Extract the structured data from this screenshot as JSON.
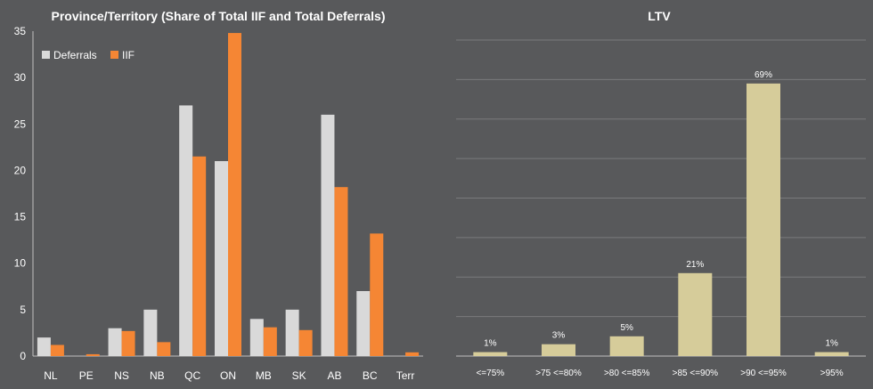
{
  "colors": {
    "background": "#58595b",
    "deferrals": "#d9d9d9",
    "iif": "#f58634",
    "ltv_bar": "#d6cc9a",
    "grid": "#7a7b7d",
    "text": "#ffffff"
  },
  "chart_data": [
    {
      "type": "bar",
      "title": "Province/Territory (Share of Total IIF and Total Deferrals)",
      "categories": [
        "NL",
        "PE",
        "NS",
        "NB",
        "QC",
        "ON",
        "MB",
        "SK",
        "AB",
        "BC",
        "Terr"
      ],
      "series": [
        {
          "name": "Deferrals",
          "color": "#d9d9d9",
          "values": [
            2,
            0,
            3,
            5,
            27,
            21,
            4,
            5,
            26,
            7,
            0
          ]
        },
        {
          "name": "IIF",
          "color": "#f58634",
          "values": [
            1.2,
            0.2,
            2.7,
            1.5,
            21.5,
            34.8,
            3.1,
            2.8,
            18.2,
            13.2,
            0.4
          ]
        }
      ],
      "ylim": [
        0,
        35
      ],
      "yticks": [
        0,
        5,
        10,
        15,
        20,
        25,
        30,
        35
      ],
      "grid": false,
      "legend": "top-left"
    },
    {
      "type": "bar",
      "title": "LTV",
      "categories": [
        "<=75%",
        ">75 <=80%",
        ">80 <=85%",
        ">85 <=90%",
        ">90 <=95%",
        ">95%"
      ],
      "values": [
        1,
        3,
        5,
        21,
        69,
        1
      ],
      "data_labels": [
        "1%",
        "3%",
        "5%",
        "21%",
        "69%",
        "1%"
      ],
      "ylim": [
        0,
        80
      ],
      "grid": true,
      "legend": "none"
    }
  ]
}
